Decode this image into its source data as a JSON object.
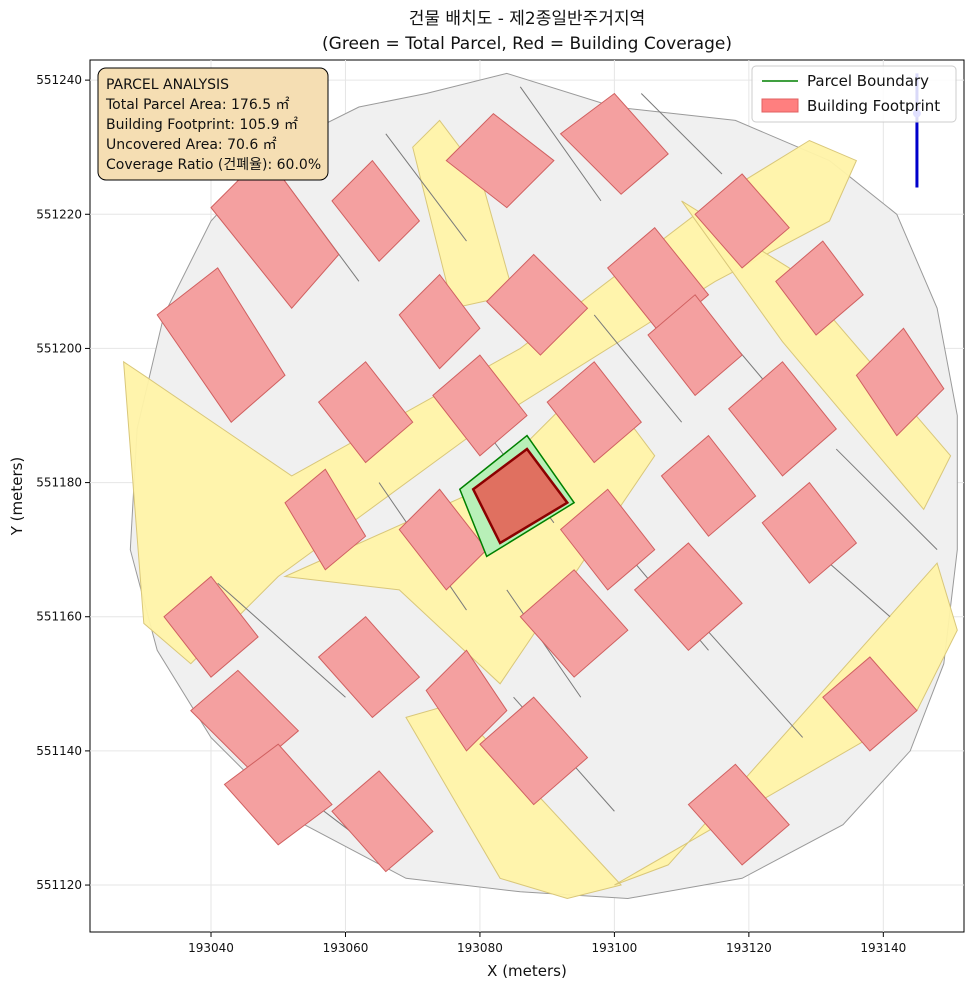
{
  "chart_data": {
    "type": "map",
    "title_lines": [
      "건물 배치도 - 제2종일반주거지역",
      "(Green = Total Parcel, Red = Building Coverage)"
    ],
    "xlabel": "X (meters)",
    "ylabel": "Y (meters)",
    "xlim": [
      193022,
      193152
    ],
    "ylim": [
      551113,
      551243
    ],
    "xticks": [
      193040,
      193060,
      193080,
      193100,
      193120,
      193140
    ],
    "yticks": [
      551120,
      551140,
      551160,
      551180,
      551200,
      551220,
      551240
    ],
    "xtick_labels": [
      "193040",
      "193060",
      "193080",
      "193100",
      "193120",
      "193140"
    ],
    "ytick_labels": [
      "551120",
      "551140",
      "551160",
      "551180",
      "551200",
      "551220",
      "551240"
    ],
    "grid": true,
    "legend_position": "top-right",
    "legend": [
      {
        "label": "Parcel Boundary",
        "color": "#008000",
        "kind": "line"
      },
      {
        "label": "Building Footprint",
        "color": "#ff7f7f",
        "kind": "patch"
      }
    ],
    "info_box": {
      "position": "top-left",
      "lines": [
        "PARCEL ANALYSIS",
        "Total Parcel Area: 176.5 ㎡",
        "Building Footprint: 105.9 ㎡",
        "Uncovered Area: 70.6 ㎡",
        "Coverage Ratio (건폐율): 60.0%"
      ]
    },
    "target_parcel": {
      "boundary": [
        [
          193087,
          551187
        ],
        [
          193094,
          551177
        ],
        [
          193081,
          551169
        ],
        [
          193077,
          551179
        ]
      ],
      "building": [
        [
          193087,
          551185
        ],
        [
          193093,
          551177
        ],
        [
          193083,
          551171
        ],
        [
          193079,
          551179
        ]
      ],
      "parcel_color": "#008000",
      "building_color": "#8b0000"
    },
    "context": {
      "site_outline": [
        [
          193072,
          551238
        ],
        [
          193084,
          551241
        ],
        [
          193100,
          551236
        ],
        [
          193118,
          551234
        ],
        [
          193132,
          551228
        ],
        [
          193142,
          551220
        ],
        [
          193148,
          551206
        ],
        [
          193151,
          551190
        ],
        [
          193151,
          551170
        ],
        [
          193149,
          551153
        ],
        [
          193144,
          551140
        ],
        [
          193134,
          551129
        ],
        [
          193119,
          551121
        ],
        [
          193102,
          551118
        ],
        [
          193086,
          551119
        ],
        [
          193069,
          551121
        ],
        [
          193052,
          551130
        ],
        [
          193040,
          551142
        ],
        [
          193032,
          551155
        ],
        [
          193028,
          551170
        ],
        [
          193029,
          551188
        ],
        [
          193033,
          551205
        ],
        [
          193040,
          551219
        ],
        [
          193050,
          551230
        ],
        [
          193062,
          551236
        ]
      ],
      "roads": [
        [
          [
            193027,
            551198
          ],
          [
            193030,
            551196
          ],
          [
            193052,
            551181
          ],
          [
            193086,
            551200
          ],
          [
            193116,
            551223
          ],
          [
            193129,
            551231
          ],
          [
            193136,
            551228
          ],
          [
            193132,
            551219
          ],
          [
            193115,
            551210
          ],
          [
            193080,
            551188
          ],
          [
            193050,
            551166
          ],
          [
            193037,
            551153
          ],
          [
            193030,
            551159
          ]
        ],
        [
          [
            193051,
            551166
          ],
          [
            193068,
            551164
          ],
          [
            193083,
            551150
          ],
          [
            193106,
            551184
          ],
          [
            193097,
            551196
          ],
          [
            193080,
            551179
          ]
        ],
        [
          [
            193069,
            551145
          ],
          [
            193076,
            551147
          ],
          [
            193101,
            551120
          ],
          [
            193093,
            551118
          ],
          [
            193083,
            551121
          ]
        ],
        [
          [
            193100,
            551120
          ],
          [
            193108,
            551123
          ],
          [
            193148,
            551168
          ],
          [
            193151,
            551158
          ],
          [
            193145,
            551146
          ]
        ],
        [
          [
            193110,
            551222
          ],
          [
            193126,
            551212
          ],
          [
            193150,
            551184
          ],
          [
            193146,
            551176
          ],
          [
            193125,
            551201
          ]
        ],
        [
          [
            193070,
            551230
          ],
          [
            193074,
            551234
          ],
          [
            193080,
            551226
          ],
          [
            193085,
            551208
          ],
          [
            193076,
            551206
          ]
        ]
      ],
      "buildings": [
        [
          [
            193040,
            551221
          ],
          [
            193048,
            551229
          ],
          [
            193059,
            551214
          ],
          [
            193052,
            551206
          ]
        ],
        [
          [
            193058,
            551222
          ],
          [
            193064,
            551228
          ],
          [
            193071,
            551219
          ],
          [
            193065,
            551213
          ]
        ],
        [
          [
            193075,
            551228
          ],
          [
            193082,
            551235
          ],
          [
            193091,
            551228
          ],
          [
            193084,
            551221
          ]
        ],
        [
          [
            193092,
            551232
          ],
          [
            193100,
            551238
          ],
          [
            193108,
            551229
          ],
          [
            193101,
            551223
          ]
        ],
        [
          [
            193068,
            551205
          ],
          [
            193074,
            551211
          ],
          [
            193080,
            551203
          ],
          [
            193074,
            551197
          ]
        ],
        [
          [
            193081,
            551207
          ],
          [
            193088,
            551214
          ],
          [
            193096,
            551206
          ],
          [
            193089,
            551199
          ]
        ],
        [
          [
            193099,
            551212
          ],
          [
            193106,
            551218
          ],
          [
            193114,
            551208
          ],
          [
            193107,
            551202
          ]
        ],
        [
          [
            193112,
            551220
          ],
          [
            193119,
            551226
          ],
          [
            193126,
            551218
          ],
          [
            193119,
            551212
          ]
        ],
        [
          [
            193124,
            551210
          ],
          [
            193131,
            551216
          ],
          [
            193137,
            551208
          ],
          [
            193130,
            551202
          ]
        ],
        [
          [
            193032,
            551205
          ],
          [
            193041,
            551212
          ],
          [
            193051,
            551196
          ],
          [
            193043,
            551189
          ]
        ],
        [
          [
            193056,
            551192
          ],
          [
            193063,
            551198
          ],
          [
            193070,
            551189
          ],
          [
            193063,
            551183
          ]
        ],
        [
          [
            193073,
            551193
          ],
          [
            193080,
            551199
          ],
          [
            193087,
            551190
          ],
          [
            193080,
            551184
          ]
        ],
        [
          [
            193090,
            551192
          ],
          [
            193097,
            551198
          ],
          [
            193104,
            551189
          ],
          [
            193097,
            551183
          ]
        ],
        [
          [
            193105,
            551202
          ],
          [
            193112,
            551208
          ],
          [
            193119,
            551199
          ],
          [
            193112,
            551193
          ]
        ],
        [
          [
            193117,
            551191
          ],
          [
            193125,
            551198
          ],
          [
            193133,
            551188
          ],
          [
            193125,
            551181
          ]
        ],
        [
          [
            193136,
            551196
          ],
          [
            193143,
            551203
          ],
          [
            193149,
            551194
          ],
          [
            193142,
            551187
          ]
        ],
        [
          [
            193051,
            551177
          ],
          [
            193057,
            551182
          ],
          [
            193063,
            551172
          ],
          [
            193057,
            551167
          ]
        ],
        [
          [
            193068,
            551173
          ],
          [
            193074,
            551179
          ],
          [
            193081,
            551170
          ],
          [
            193075,
            551164
          ]
        ],
        [
          [
            193092,
            551173
          ],
          [
            193099,
            551179
          ],
          [
            193106,
            551170
          ],
          [
            193099,
            551164
          ]
        ],
        [
          [
            193107,
            551181
          ],
          [
            193114,
            551187
          ],
          [
            193121,
            551178
          ],
          [
            193114,
            551172
          ]
        ],
        [
          [
            193122,
            551174
          ],
          [
            193129,
            551180
          ],
          [
            193136,
            551171
          ],
          [
            193129,
            551165
          ]
        ],
        [
          [
            193033,
            551160
          ],
          [
            193040,
            551166
          ],
          [
            193047,
            551157
          ],
          [
            193040,
            551151
          ]
        ],
        [
          [
            193037,
            551146
          ],
          [
            193044,
            551152
          ],
          [
            193053,
            551143
          ],
          [
            193046,
            551137
          ]
        ],
        [
          [
            193056,
            551154
          ],
          [
            193063,
            551160
          ],
          [
            193071,
            551151
          ],
          [
            193064,
            551145
          ]
        ],
        [
          [
            193072,
            551149
          ],
          [
            193078,
            551155
          ],
          [
            193084,
            551146
          ],
          [
            193078,
            551140
          ]
        ],
        [
          [
            193086,
            551160
          ],
          [
            193094,
            551167
          ],
          [
            193102,
            551158
          ],
          [
            193094,
            551151
          ]
        ],
        [
          [
            193103,
            551164
          ],
          [
            193111,
            551171
          ],
          [
            193119,
            551162
          ],
          [
            193111,
            551155
          ]
        ],
        [
          [
            193042,
            551135
          ],
          [
            193050,
            551141
          ],
          [
            193058,
            551132
          ],
          [
            193050,
            551126
          ]
        ],
        [
          [
            193058,
            551131
          ],
          [
            193065,
            551137
          ],
          [
            193073,
            551128
          ],
          [
            193066,
            551122
          ]
        ],
        [
          [
            193080,
            551141
          ],
          [
            193088,
            551148
          ],
          [
            193096,
            551139
          ],
          [
            193088,
            551132
          ]
        ],
        [
          [
            193111,
            551132
          ],
          [
            193118,
            551138
          ],
          [
            193126,
            551129
          ],
          [
            193119,
            551123
          ]
        ],
        [
          [
            193131,
            551148
          ],
          [
            193138,
            551154
          ],
          [
            193145,
            551146
          ],
          [
            193138,
            551140
          ]
        ]
      ],
      "parcel_lines": [
        [
          [
            193045,
            551233
          ],
          [
            193062,
            551210
          ]
        ],
        [
          [
            193066,
            551232
          ],
          [
            193078,
            551216
          ]
        ],
        [
          [
            193086,
            551239
          ],
          [
            193098,
            551222
          ]
        ],
        [
          [
            193104,
            551238
          ],
          [
            193116,
            551226
          ]
        ],
        [
          [
            193077,
            551193
          ],
          [
            193091,
            551174
          ]
        ],
        [
          [
            193097,
            551205
          ],
          [
            193110,
            551189
          ]
        ],
        [
          [
            193114,
            551205
          ],
          [
            193130,
            551186
          ]
        ],
        [
          [
            193133,
            551185
          ],
          [
            193148,
            551170
          ]
        ],
        [
          [
            193065,
            551180
          ],
          [
            193078,
            551161
          ]
        ],
        [
          [
            193084,
            551164
          ],
          [
            193095,
            551148
          ]
        ],
        [
          [
            193098,
            551174
          ],
          [
            193114,
            551155
          ]
        ],
        [
          [
            193041,
            551165
          ],
          [
            193060,
            551148
          ]
        ],
        [
          [
            193045,
            551140
          ],
          [
            193066,
            551124
          ]
        ],
        [
          [
            193085,
            551148
          ],
          [
            193100,
            551131
          ]
        ],
        [
          [
            193112,
            551160
          ],
          [
            193128,
            551142
          ]
        ],
        [
          [
            193124,
            551175
          ],
          [
            193141,
            551160
          ]
        ]
      ],
      "north_arrow": [
        [
          193145,
          551224
        ],
        [
          193145,
          551241
        ]
      ]
    }
  }
}
